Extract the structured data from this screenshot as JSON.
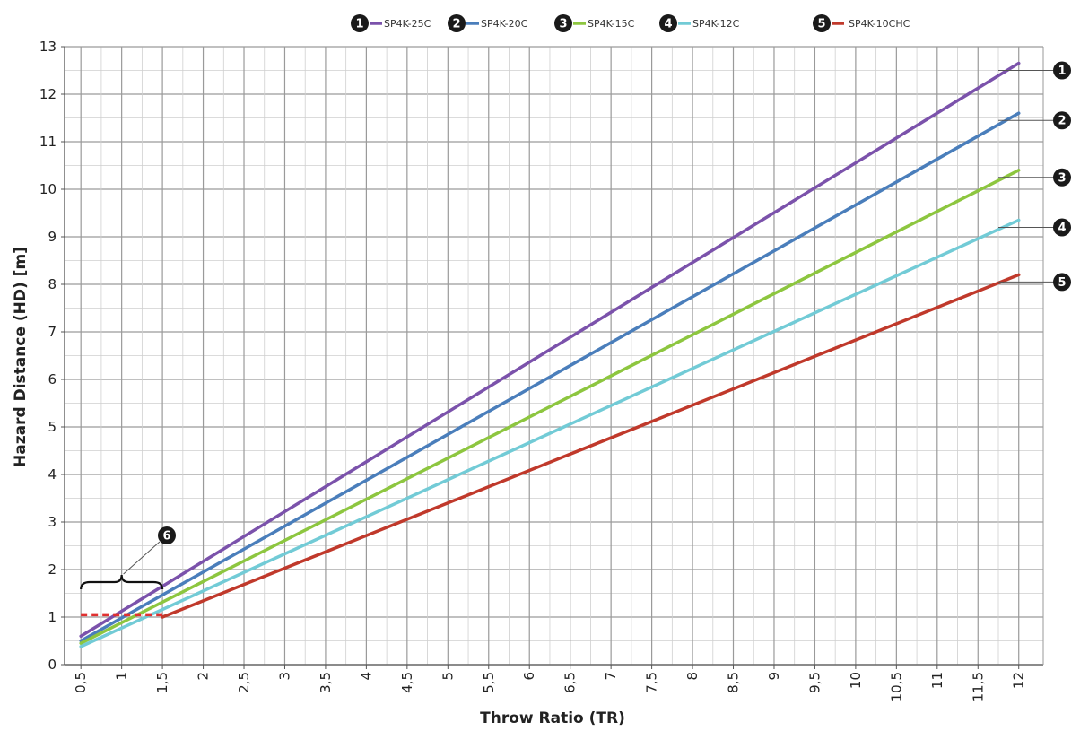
{
  "chart_data": {
    "type": "line",
    "xlabel": "Throw Ratio (TR)",
    "ylabel": "Hazard Distance (HD) [m]",
    "xlim": [
      0.3,
      12.3
    ],
    "ylim": [
      0,
      13
    ],
    "x_ticks": [
      0.5,
      1,
      1.5,
      2,
      2.5,
      3,
      3.5,
      4,
      4.5,
      5,
      5.5,
      6,
      6.5,
      7,
      7.5,
      8,
      8.5,
      9,
      9.5,
      10,
      10.5,
      11,
      11.5,
      12
    ],
    "x_tick_labels": [
      "0,5",
      "1",
      "1,5",
      "2",
      "2,5",
      "3",
      "3,5",
      "4",
      "4,5",
      "5",
      "5,5",
      "6",
      "6,5",
      "7",
      "7,5",
      "8",
      "8,5",
      "9",
      "9,5",
      "10",
      "10,5",
      "11",
      "11,5",
      "12"
    ],
    "y_ticks": [
      0,
      1,
      2,
      3,
      4,
      5,
      6,
      7,
      8,
      9,
      10,
      11,
      12,
      13
    ],
    "y_tick_labels": [
      "0",
      "1",
      "2",
      "3",
      "4",
      "5",
      "6",
      "7",
      "8",
      "9",
      "10",
      "11",
      "12",
      "13"
    ],
    "grid": true,
    "legend_placement": "top",
    "series": [
      {
        "badge": "1",
        "name": "SP4K-25C",
        "color": "#7b52ab",
        "x": [
          0.5,
          12
        ],
        "y": [
          0.6,
          12.65
        ]
      },
      {
        "badge": "2",
        "name": "SP4K-20C",
        "color": "#4a7ebb",
        "x": [
          0.5,
          12
        ],
        "y": [
          0.5,
          11.6
        ]
      },
      {
        "badge": "3",
        "name": "SP4K-15C",
        "color": "#8dc63f",
        "x": [
          0.5,
          12
        ],
        "y": [
          0.45,
          10.4
        ]
      },
      {
        "badge": "4",
        "name": "SP4K-12C",
        "color": "#72cbd6",
        "x": [
          0.5,
          12
        ],
        "y": [
          0.38,
          9.35
        ]
      },
      {
        "badge": "5",
        "name": "SP4K-10CHC",
        "color": "#c0392b",
        "x": [
          1.5,
          12
        ],
        "y": [
          1.0,
          8.2
        ]
      }
    ],
    "min_distance_line": {
      "color": "#e03030",
      "x": [
        0.5,
        1.5
      ],
      "y": [
        1.05,
        1.05
      ]
    },
    "annotations": [
      {
        "label": "6",
        "target": "minimum hazard distance region TR 0,5–1,5"
      }
    ]
  }
}
